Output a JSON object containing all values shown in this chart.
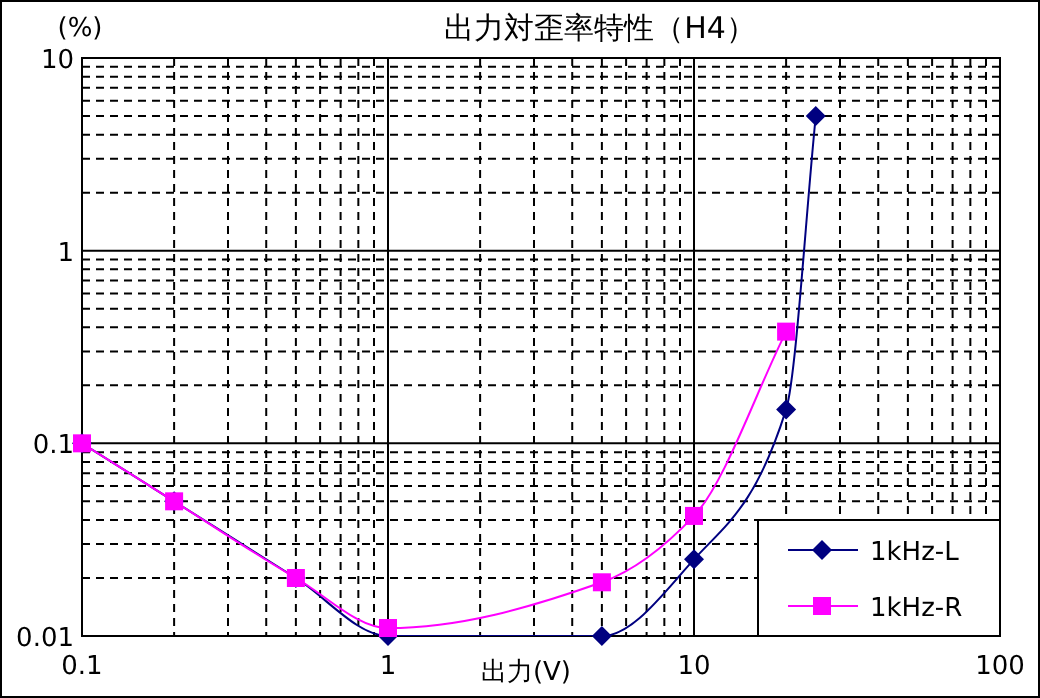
{
  "chart_data": {
    "type": "line",
    "title": "出力対歪率特性（H4）",
    "ylabel": "(%)",
    "xlabel": "出力(V)",
    "log": "xy",
    "xlim": [
      0.1,
      100
    ],
    "xticks": [
      0.1,
      1,
      10,
      100
    ],
    "ylim": [
      0.01,
      10
    ],
    "yticks": [
      0.01,
      0.1,
      1,
      10
    ],
    "grid": true,
    "legend": "bottom right",
    "x": [
      0.1,
      0.2,
      0.5,
      1,
      5,
      10,
      20,
      25
    ],
    "series": [
      {
        "name": "1kHz-L",
        "color": "#000080",
        "marker": "diamond",
        "values": [
          0.1,
          0.05,
          0.02,
          0.01,
          0.01,
          0.025,
          0.15,
          5
        ]
      },
      {
        "name": "1kHz-R",
        "color": "#ff00ff",
        "marker": "square",
        "values": [
          0.1,
          0.05,
          0.02,
          0.011,
          0.019,
          0.042,
          0.38,
          null
        ]
      }
    ]
  }
}
